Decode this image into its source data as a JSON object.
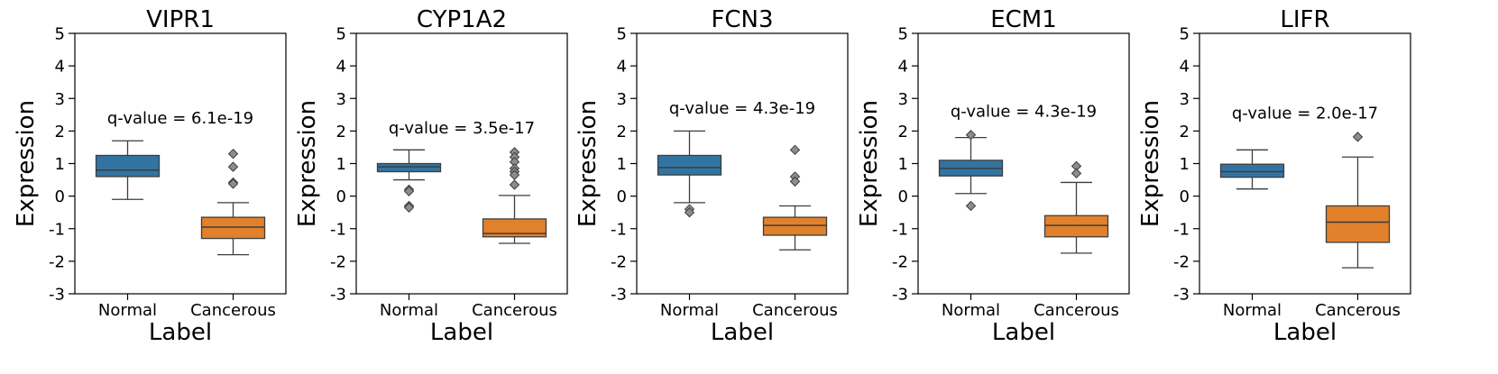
{
  "chart_data": [
    {
      "type": "box",
      "title": "VIPR1",
      "xlabel": "Label",
      "ylabel": "Expression",
      "ylim": [
        -3,
        5
      ],
      "yticks": [
        -3,
        -2,
        -1,
        0,
        1,
        2,
        3,
        4,
        5
      ],
      "categories": [
        "Normal",
        "Cancerous"
      ],
      "annotation": "q-value = 6.1e-19",
      "annotation_y": 2.4,
      "colors": [
        "#3274a1",
        "#e1812c"
      ],
      "boxes": [
        {
          "whislo": -0.1,
          "q1": 0.6,
          "med": 0.8,
          "q3": 1.25,
          "whishi": 1.7,
          "fliers": []
        },
        {
          "whislo": -1.8,
          "q1": -1.3,
          "med": -0.95,
          "q3": -0.65,
          "whishi": -0.2,
          "fliers": [
            1.3,
            0.9,
            0.42,
            0.38
          ]
        }
      ]
    },
    {
      "type": "box",
      "title": "CYP1A2",
      "xlabel": "Label",
      "ylabel": "Expression",
      "ylim": [
        -3,
        5
      ],
      "yticks": [
        -3,
        -2,
        -1,
        0,
        1,
        2,
        3,
        4,
        5
      ],
      "categories": [
        "Normal",
        "Cancerous"
      ],
      "annotation": "q-value = 3.5e-17",
      "annotation_y": 2.1,
      "colors": [
        "#3274a1",
        "#e1812c"
      ],
      "boxes": [
        {
          "whislo": 0.5,
          "q1": 0.75,
          "med": 0.9,
          "q3": 1.0,
          "whishi": 1.42,
          "fliers": [
            0.2,
            0.15,
            -0.3,
            -0.35
          ]
        },
        {
          "whislo": -1.45,
          "q1": -1.25,
          "med": -1.15,
          "q3": -0.7,
          "whishi": 0.02,
          "fliers": [
            1.35,
            1.2,
            1.05,
            0.85,
            0.75,
            0.65,
            0.35
          ]
        }
      ]
    },
    {
      "type": "box",
      "title": "FCN3",
      "xlabel": "Label",
      "ylabel": "Expression",
      "ylim": [
        -3,
        5
      ],
      "yticks": [
        -3,
        -2,
        -1,
        0,
        1,
        2,
        3,
        4,
        5
      ],
      "categories": [
        "Normal",
        "Cancerous"
      ],
      "annotation": "q-value = 4.3e-19",
      "annotation_y": 2.7,
      "colors": [
        "#3274a1",
        "#e1812c"
      ],
      "boxes": [
        {
          "whislo": -0.2,
          "q1": 0.65,
          "med": 0.88,
          "q3": 1.25,
          "whishi": 2.0,
          "fliers": [
            -0.4,
            -0.5
          ]
        },
        {
          "whislo": -1.65,
          "q1": -1.2,
          "med": -0.9,
          "q3": -0.65,
          "whishi": -0.3,
          "fliers": [
            1.42,
            0.6,
            0.45
          ]
        }
      ]
    },
    {
      "type": "box",
      "title": "ECM1",
      "xlabel": "Label",
      "ylabel": "Expression",
      "ylim": [
        -3,
        5
      ],
      "yticks": [
        -3,
        -2,
        -1,
        0,
        1,
        2,
        3,
        4,
        5
      ],
      "categories": [
        "Normal",
        "Cancerous"
      ],
      "annotation": "q-value = 4.3e-19",
      "annotation_y": 2.6,
      "colors": [
        "#3274a1",
        "#e1812c"
      ],
      "boxes": [
        {
          "whislo": 0.08,
          "q1": 0.62,
          "med": 0.85,
          "q3": 1.1,
          "whishi": 1.8,
          "fliers": [
            1.88,
            -0.3
          ]
        },
        {
          "whislo": -1.75,
          "q1": -1.25,
          "med": -0.9,
          "q3": -0.6,
          "whishi": 0.42,
          "fliers": [
            0.92,
            0.7
          ]
        }
      ]
    },
    {
      "type": "box",
      "title": "LIFR",
      "xlabel": "Label",
      "ylabel": "Expression",
      "ylim": [
        -3,
        5
      ],
      "yticks": [
        -3,
        -2,
        -1,
        0,
        1,
        2,
        3,
        4,
        5
      ],
      "categories": [
        "Normal",
        "Cancerous"
      ],
      "annotation": "q-value = 2.0e-17",
      "annotation_y": 2.55,
      "colors": [
        "#3274a1",
        "#e1812c"
      ],
      "boxes": [
        {
          "whislo": 0.22,
          "q1": 0.58,
          "med": 0.75,
          "q3": 0.98,
          "whishi": 1.42,
          "fliers": []
        },
        {
          "whislo": -2.2,
          "q1": -1.42,
          "med": -0.8,
          "q3": -0.3,
          "whishi": 1.2,
          "fliers": [
            1.82
          ]
        }
      ]
    }
  ]
}
